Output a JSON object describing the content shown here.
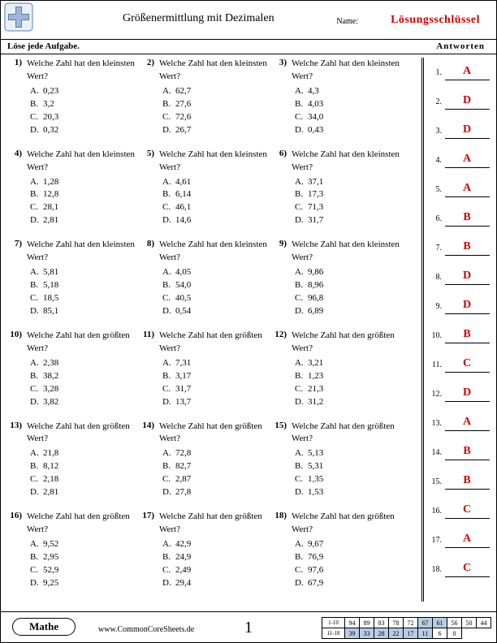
{
  "header": {
    "title": "Größenermittlung mit Dezimalen",
    "name_label": "Name:",
    "answer_key": "Lösungsschlüssel",
    "instruction": "Löse jede Aufgabe.",
    "answers_header": "Antworten"
  },
  "questions": [
    {
      "n": "1)",
      "q": "Welche Zahl hat den kleinsten Wert?",
      "c": [
        "0,23",
        "3,2",
        "20,3",
        "0,32"
      ]
    },
    {
      "n": "2)",
      "q": "Welche Zahl hat den kleinsten Wert?",
      "c": [
        "62,7",
        "27,6",
        "72,6",
        "26,7"
      ]
    },
    {
      "n": "3)",
      "q": "Welche Zahl hat den kleinsten Wert?",
      "c": [
        "4,3",
        "4,03",
        "34,0",
        "0,43"
      ]
    },
    {
      "n": "4)",
      "q": "Welche Zahl hat den kleinsten Wert?",
      "c": [
        "1,28",
        "12,8",
        "28,1",
        "2,81"
      ]
    },
    {
      "n": "5)",
      "q": "Welche Zahl hat den kleinsten Wert?",
      "c": [
        "4,61",
        "6,14",
        "46,1",
        "14,6"
      ]
    },
    {
      "n": "6)",
      "q": "Welche Zahl hat den kleinsten Wert?",
      "c": [
        "37,1",
        "17,3",
        "71,3",
        "31,7"
      ]
    },
    {
      "n": "7)",
      "q": "Welche Zahl hat den kleinsten Wert?",
      "c": [
        "5,81",
        "5,18",
        "18,5",
        "85,1"
      ]
    },
    {
      "n": "8)",
      "q": "Welche Zahl hat den kleinsten Wert?",
      "c": [
        "4,05",
        "54,0",
        "40,5",
        "0,54"
      ]
    },
    {
      "n": "9)",
      "q": "Welche Zahl hat den kleinsten Wert?",
      "c": [
        "9,86",
        "8,96",
        "96,8",
        "6,89"
      ]
    },
    {
      "n": "10)",
      "q": "Welche Zahl hat den größten Wert?",
      "c": [
        "2,38",
        "38,2",
        "3,28",
        "3,82"
      ]
    },
    {
      "n": "11)",
      "q": "Welche Zahl hat den größten Wert?",
      "c": [
        "7,31",
        "3,17",
        "31,7",
        "13,7"
      ]
    },
    {
      "n": "12)",
      "q": "Welche Zahl hat den größten Wert?",
      "c": [
        "3,21",
        "1,23",
        "21,3",
        "31,2"
      ]
    },
    {
      "n": "13)",
      "q": "Welche Zahl hat den größten Wert?",
      "c": [
        "21,8",
        "8,12",
        "2,18",
        "2,81"
      ]
    },
    {
      "n": "14)",
      "q": "Welche Zahl hat den größten Wert?",
      "c": [
        "72,8",
        "82,7",
        "2,87",
        "27,8"
      ]
    },
    {
      "n": "15)",
      "q": "Welche Zahl hat den größten Wert?",
      "c": [
        "5,13",
        "5,31",
        "1,35",
        "1,53"
      ]
    },
    {
      "n": "16)",
      "q": "Welche Zahl hat den größten Wert?",
      "c": [
        "9,52",
        "2,95",
        "52,9",
        "9,25"
      ]
    },
    {
      "n": "17)",
      "q": "Welche Zahl hat den größten Wert?",
      "c": [
        "42,9",
        "24,9",
        "2,49",
        "29,4"
      ]
    },
    {
      "n": "18)",
      "q": "Welche Zahl hat den größten Wert?",
      "c": [
        "9,67",
        "76,9",
        "97,6",
        "67,9"
      ]
    }
  ],
  "answers": [
    "A",
    "D",
    "D",
    "A",
    "A",
    "B",
    "B",
    "D",
    "D",
    "B",
    "C",
    "D",
    "A",
    "B",
    "B",
    "C",
    "A",
    "C"
  ],
  "choice_letters": [
    "A.",
    "B.",
    "C.",
    "D."
  ],
  "footer": {
    "subject": "Mathe",
    "site": "www.CommonCoreSheets.de",
    "page": "1",
    "score_labels": [
      "1-10",
      "11-18"
    ],
    "score_rows": [
      [
        "94",
        "89",
        "83",
        "78",
        "72",
        "67",
        "61",
        "56",
        "50",
        "44"
      ],
      [
        "39",
        "33",
        "28",
        "22",
        "17",
        "11",
        "6",
        "0",
        "",
        ""
      ]
    ],
    "shaded_cols_top": [
      5,
      6
    ],
    "shaded_cols_bot": [
      0,
      1,
      2,
      3,
      4,
      5
    ]
  },
  "colors": {
    "answer_red": "#d40000",
    "shade_blue": "#b8cce4"
  }
}
